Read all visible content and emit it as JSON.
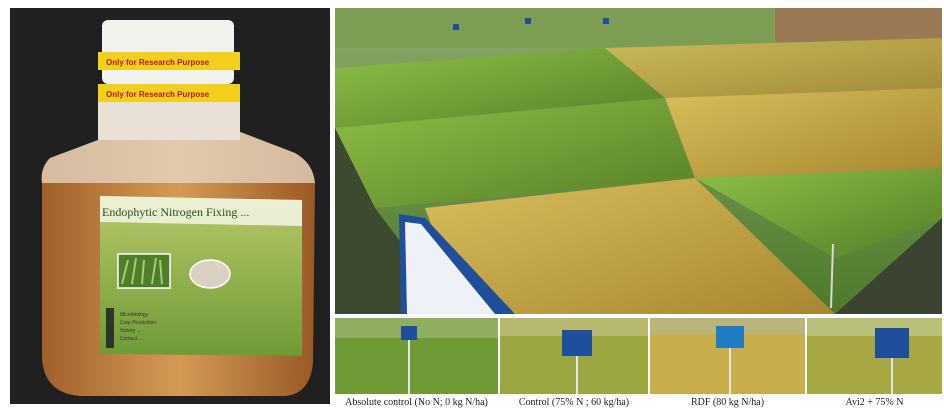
{
  "bottle": {
    "cap_tape_text": "Only for Research Purpose",
    "label_title": "Endophytic Nitrogen Fixing ...",
    "label_lines": [
      "Microbiology",
      "Crop Production",
      "Variety ...",
      "Contact ..."
    ]
  },
  "treatments": [
    {
      "caption": "Absolute control (No N; 0 kg N/ha)"
    },
    {
      "caption": "Control (75% N ; 60 kg/ha)"
    },
    {
      "caption": "RDF (80 kg N/ha)"
    },
    {
      "caption": "Avi2 + 75% N"
    }
  ],
  "colors": {
    "bottle_liquid": "#c0813d",
    "tape_yellow": "#f2cf1c",
    "sign_blue": "#1f4e9c",
    "rice_green": "#6f9a35",
    "rice_golden": "#c9a94a"
  }
}
